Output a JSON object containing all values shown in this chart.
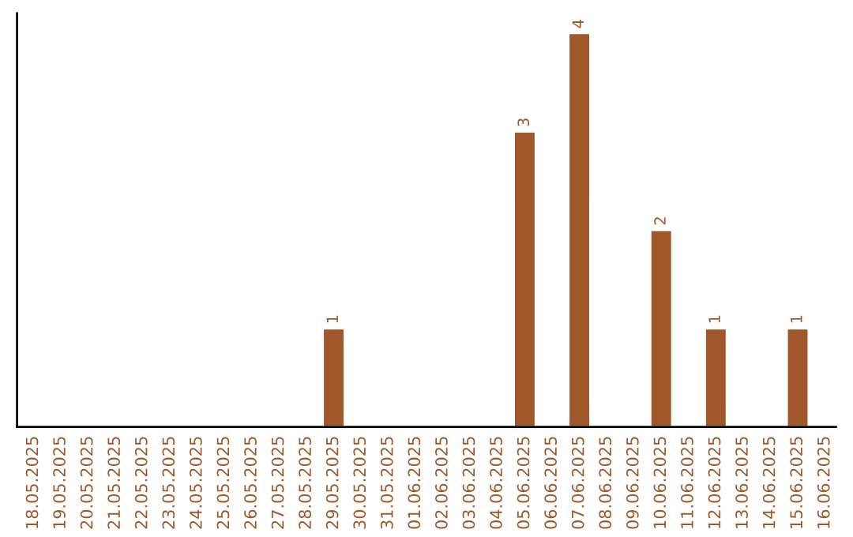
{
  "chart_data": {
    "type": "bar",
    "categories": [
      "18.05.2025",
      "19.05.2025",
      "20.05.2025",
      "21.05.2025",
      "22.05.2025",
      "23.05.2025",
      "24.05.2025",
      "25.05.2025",
      "26.05.2025",
      "27.05.2025",
      "28.05.2025",
      "29.05.2025",
      "30.05.2025",
      "31.05.2025",
      "01.06.2025",
      "02.06.2025",
      "03.06.2025",
      "04.06.2025",
      "05.06.2025",
      "06.06.2025",
      "07.06.2025",
      "08.06.2025",
      "09.06.2025",
      "10.06.2025",
      "11.06.2025",
      "12.06.2025",
      "13.06.2025",
      "14.06.2025",
      "15.06.2025",
      "16.06.2025"
    ],
    "values": [
      0,
      0,
      0,
      0,
      0,
      0,
      0,
      0,
      0,
      0,
      0,
      1,
      0,
      0,
      0,
      0,
      0,
      0,
      3,
      0,
      4,
      0,
      0,
      2,
      0,
      1,
      0,
      0,
      1,
      0
    ],
    "value_labels": [
      null,
      null,
      null,
      null,
      null,
      null,
      null,
      null,
      null,
      null,
      null,
      "1",
      null,
      null,
      null,
      null,
      null,
      null,
      "3",
      null,
      "4",
      null,
      null,
      "2",
      null,
      "1",
      null,
      null,
      "1",
      null
    ],
    "color": "#a0582a",
    "tick_labels": "x",
    "grid": false,
    "legend": false
  }
}
